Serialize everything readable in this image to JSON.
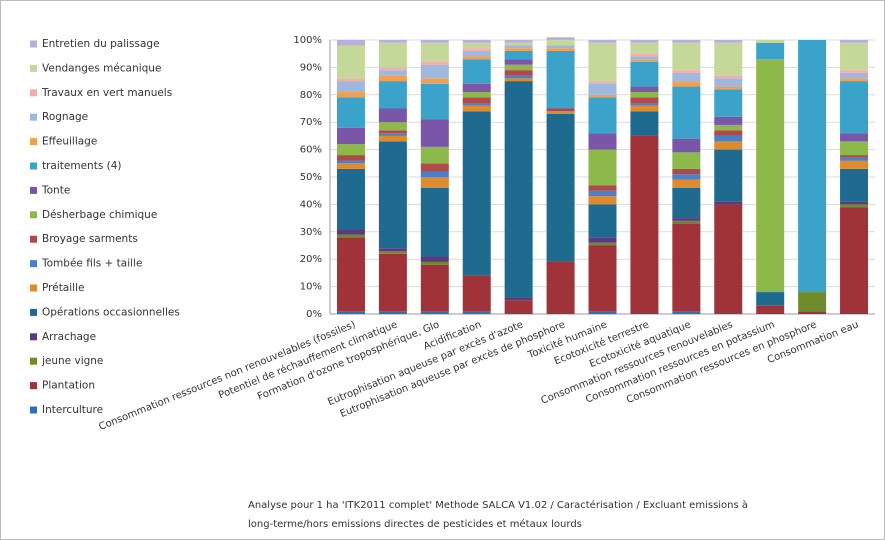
{
  "chart_data": {
    "type": "stacked_bar_100",
    "categories": [
      "Consommation ressources non renouvelables (fossiles)",
      "Potentiel de réchauffement climatique",
      "Formation d'ozone troposphérique, Glo",
      "Acidification",
      "Eutrophisation aqueuse par excès d'azote",
      "Eutrophisation aqueuse par excès de phosphore",
      "Toxicité humaine",
      "Ecotoxicité terrestre",
      "Ecotoxicité aquatique",
      "Consommation ressources renouvelables",
      "Consommation ressources en potassium",
      "Consommation ressources en phosphore",
      "Consommation eau"
    ],
    "series": [
      {
        "name": "Interculture",
        "color": "#2e6fb5",
        "values": [
          1,
          1,
          1,
          1,
          0,
          0,
          1,
          0,
          1,
          0,
          0,
          0,
          0
        ]
      },
      {
        "name": "Plantation",
        "color": "#a0333a",
        "values": [
          27,
          21,
          17,
          13,
          5,
          19,
          24,
          65,
          32,
          40,
          3,
          1,
          39
        ]
      },
      {
        "name": "jeune vigne",
        "color": "#6e8c2c",
        "values": [
          1,
          1,
          1,
          0,
          0,
          0,
          1,
          0,
          1,
          0,
          0,
          7,
          1
        ]
      },
      {
        "name": "Arrachage",
        "color": "#5b3a80",
        "values": [
          2,
          1,
          2,
          0,
          1,
          0,
          2,
          0,
          1,
          1,
          0,
          0,
          1
        ]
      },
      {
        "name": "Opérations occasionnelles",
        "color": "#1f6a8f",
        "values": [
          22,
          39,
          25,
          60,
          79,
          54,
          12,
          9,
          11,
          19,
          5,
          0,
          12
        ]
      },
      {
        "name": "Prétaille",
        "color": "#e08a2e",
        "values": [
          2,
          2,
          4,
          2,
          1,
          1,
          3,
          2,
          3,
          3,
          0,
          0,
          3
        ]
      },
      {
        "name": "Tombée fils + taille",
        "color": "#4a7fc9",
        "values": [
          1,
          1,
          2,
          1,
          1,
          0,
          2,
          1,
          2,
          2,
          0,
          0,
          1
        ]
      },
      {
        "name": "Broyage sarments",
        "color": "#b04a4a",
        "values": [
          2,
          1,
          3,
          2,
          2,
          1,
          2,
          2,
          2,
          2,
          0,
          0,
          1
        ]
      },
      {
        "name": "Désherbage chimique",
        "color": "#8db84a",
        "values": [
          4,
          3,
          6,
          2,
          2,
          0,
          13,
          2,
          6,
          2,
          85,
          0,
          5
        ]
      },
      {
        "name": "Tonte",
        "color": "#7a56a8",
        "values": [
          6,
          5,
          10,
          3,
          2,
          0,
          6,
          2,
          5,
          3,
          0,
          0,
          3
        ]
      },
      {
        "name": "traitements (4)",
        "color": "#3ba3c9",
        "values": [
          11,
          10,
          13,
          9,
          3,
          21,
          13,
          9,
          19,
          10,
          6,
          92,
          19
        ]
      },
      {
        "name": "Effeuillage",
        "color": "#f0a050",
        "values": [
          2,
          2,
          2,
          1,
          1,
          1,
          1,
          1,
          2,
          1,
          0,
          0,
          1
        ]
      },
      {
        "name": "Rognage",
        "color": "#9fb8e0",
        "values": [
          4,
          2,
          5,
          2,
          1,
          1,
          4,
          1,
          3,
          3,
          0,
          0,
          2
        ]
      },
      {
        "name": "Travaux en vert manuels",
        "color": "#f0b0a8",
        "values": [
          1,
          1,
          1,
          1,
          0,
          0,
          1,
          1,
          1,
          1,
          0,
          0,
          1
        ]
      },
      {
        "name": "Vendanges mécanique",
        "color": "#c4d89a",
        "values": [
          12,
          9,
          7,
          2,
          1,
          2,
          14,
          4,
          10,
          12,
          1,
          0,
          10
        ]
      },
      {
        "name": "Entretien du palissage",
        "color": "#b8b0d8",
        "values": [
          2,
          1,
          1,
          1,
          1,
          1,
          1,
          1,
          1,
          1,
          0,
          0,
          1
        ]
      }
    ],
    "ylim": [
      0,
      100
    ],
    "yticks": [
      {
        "value": 0,
        "label": "0%"
      },
      {
        "value": 10,
        "label": "10%"
      },
      {
        "value": 20,
        "label": "20%"
      },
      {
        "value": 30,
        "label": "30%"
      },
      {
        "value": 40,
        "label": "40%"
      },
      {
        "value": 50,
        "label": "50%"
      },
      {
        "value": 60,
        "label": "60%"
      },
      {
        "value": 70,
        "label": "70%"
      },
      {
        "value": 80,
        "label": "80%"
      },
      {
        "value": 90,
        "label": "90%"
      },
      {
        "value": 100,
        "label": "100%"
      }
    ],
    "grid": true,
    "legend": "left",
    "note": [
      "Analyse pour  1 ha 'ITK2011 complet' Methode SALCA V1.02 / Caractérisation / Excluant emissions à",
      "long-terme/hors emissions directes de pesticides et métaux lourds"
    ]
  }
}
